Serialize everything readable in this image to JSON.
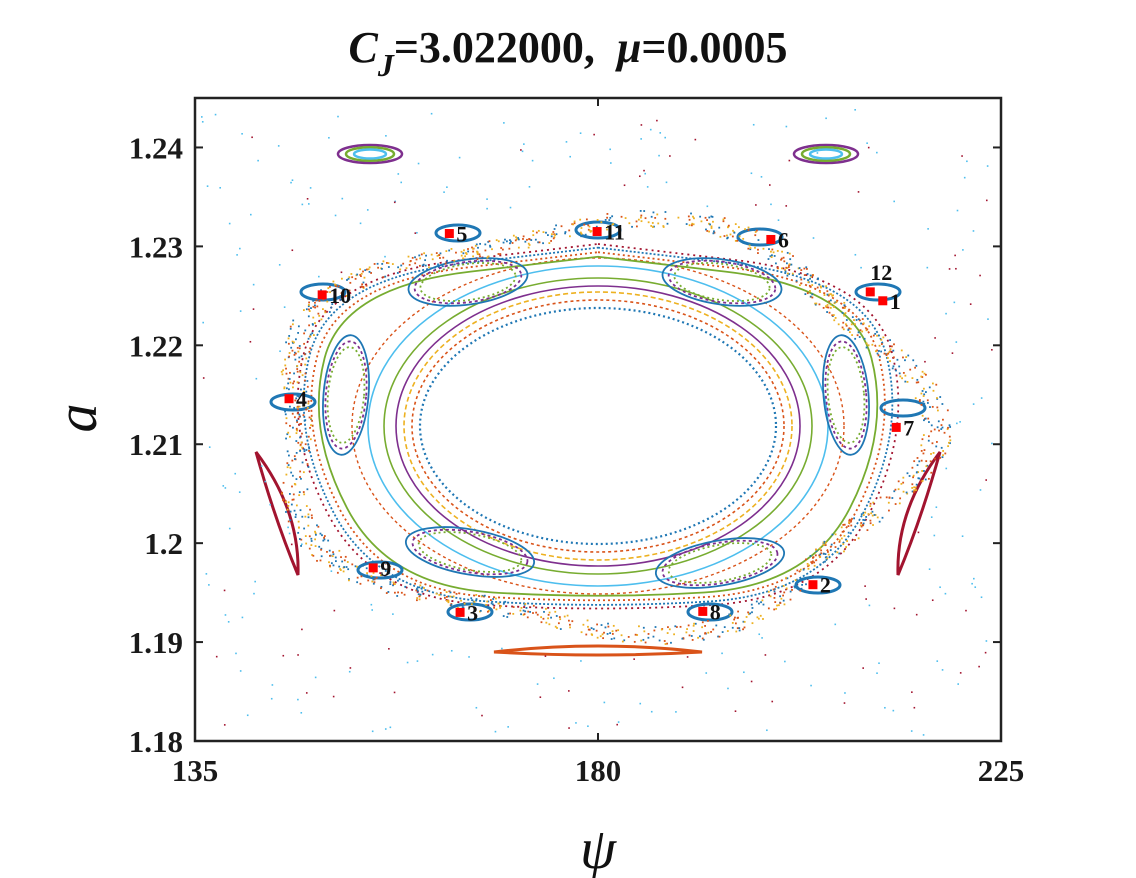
{
  "title": {
    "cj_symbol": "C",
    "cj_subscript": "J",
    "cj_value": "=3.022000,",
    "mu_symbol": "μ",
    "mu_value": "=0.0005"
  },
  "chart_data": {
    "type": "scatter",
    "xlabel": "ψ",
    "ylabel": "a",
    "xlim": [
      135,
      225
    ],
    "ylim": [
      1.18,
      1.245
    ],
    "x_ticks": [
      135,
      180,
      225
    ],
    "x_tick_labels": [
      "135",
      "180",
      "225"
    ],
    "y_ticks": [
      1.18,
      1.19,
      1.2,
      1.21,
      1.22,
      1.23,
      1.24
    ],
    "y_tick_labels": [
      "1.18",
      "1.19",
      "1.2",
      "1.21",
      "1.22",
      "1.23",
      "1.24"
    ],
    "grid": false,
    "marked_points": [
      {
        "label": "1",
        "x": 211.8,
        "y": 1.2245
      },
      {
        "label": "2",
        "x": 204.0,
        "y": 1.1958
      },
      {
        "label": "3",
        "x": 164.6,
        "y": 1.193
      },
      {
        "label": "4",
        "x": 145.5,
        "y": 1.2146
      },
      {
        "label": "5",
        "x": 163.4,
        "y": 1.2313
      },
      {
        "label": "6",
        "x": 199.3,
        "y": 1.2307
      },
      {
        "label": "7",
        "x": 213.3,
        "y": 1.2117
      },
      {
        "label": "8",
        "x": 191.7,
        "y": 1.1931
      },
      {
        "label": "9",
        "x": 154.9,
        "y": 1.1975
      },
      {
        "label": "10",
        "x": 149.2,
        "y": 1.2251
      },
      {
        "label": "11",
        "x": 179.9,
        "y": 1.2315
      },
      {
        "label": "12",
        "x": 210.4,
        "y": 1.2254
      }
    ],
    "colors": {
      "marker": "#ff0000",
      "series": [
        "#1f77b4",
        "#d95319",
        "#edb120",
        "#7e2f8e",
        "#77ac30",
        "#4dbeee",
        "#a2142f"
      ]
    }
  }
}
